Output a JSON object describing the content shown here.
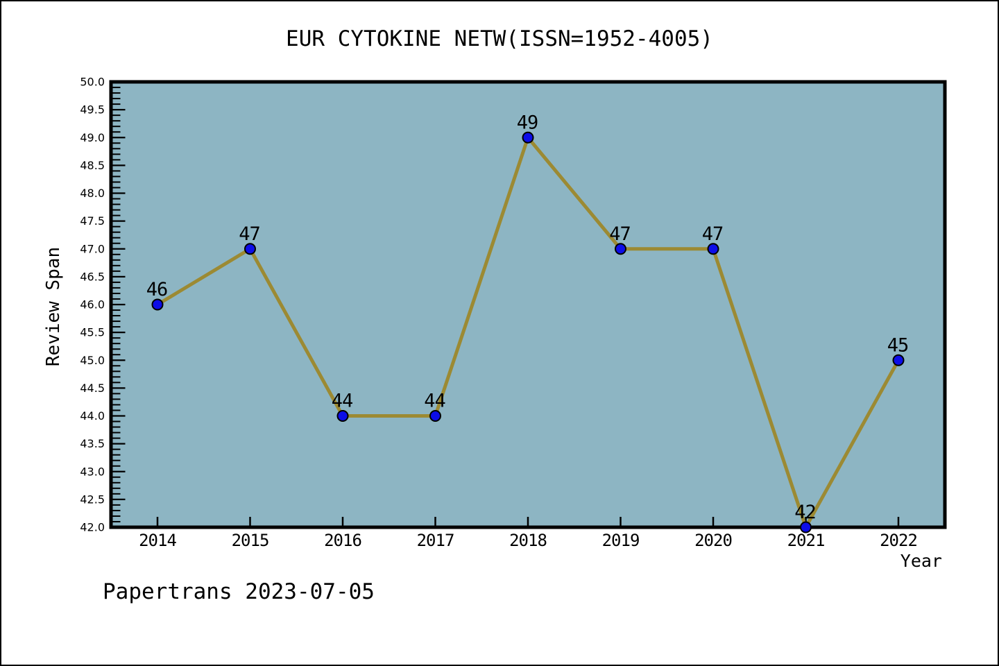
{
  "title": "EUR CYTOKINE NETW(ISSN=1952-4005)",
  "footer": "Papertrans 2023-07-05",
  "chart_data": {
    "type": "line",
    "title": "EUR CYTOKINE NETW(ISSN=1952-4005)",
    "xlabel": "Year",
    "ylabel": "Review Span",
    "categories": [
      "2014",
      "2015",
      "2016",
      "2017",
      "2018",
      "2019",
      "2020",
      "2021",
      "2022"
    ],
    "series": [
      {
        "name": "Review Span",
        "values": [
          46,
          47,
          44,
          44,
          49,
          47,
          47,
          42,
          45
        ]
      }
    ],
    "point_labels": [
      "46",
      "47",
      "44",
      "44",
      "49",
      "47",
      "47",
      "42",
      "45"
    ],
    "ylim": [
      42.0,
      50.0
    ],
    "yticks": [
      "42.0",
      "42.5",
      "43.0",
      "43.5",
      "44.0",
      "44.5",
      "45.0",
      "45.5",
      "46.0",
      "46.5",
      "47.0",
      "47.5",
      "48.0",
      "48.5",
      "49.0",
      "49.5",
      "50.0"
    ],
    "ytick_minor_step": 0.1,
    "grid": false,
    "legend_position": "none",
    "colors": {
      "plot_background": "#8db5c3",
      "page_background": "#ffffff",
      "line": "#9c8a33",
      "marker_fill": "#0d0de8",
      "marker_edge": "#000000",
      "frame": "#000000",
      "text": "#000000"
    }
  }
}
